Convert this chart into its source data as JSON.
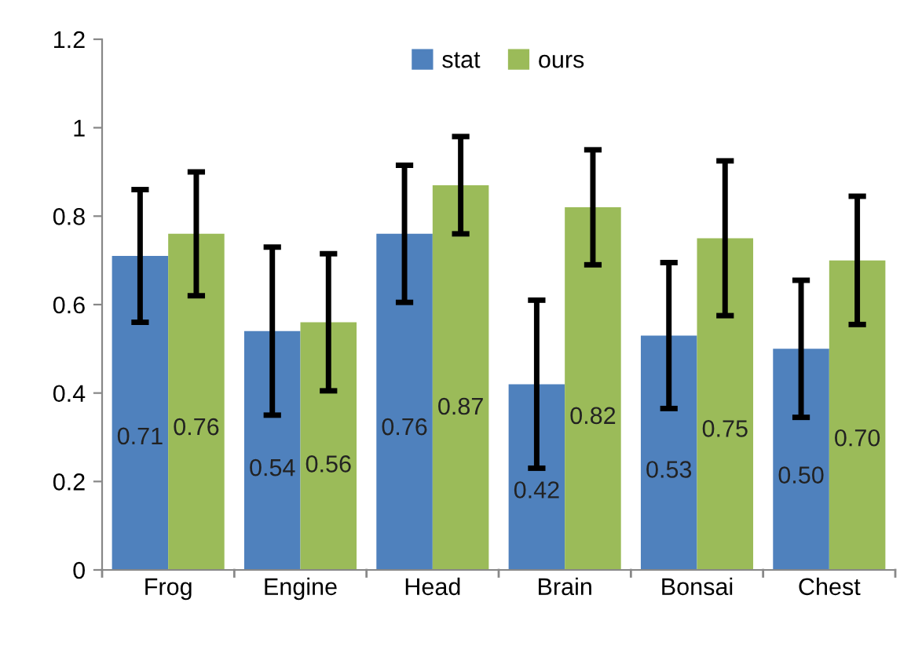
{
  "chart_data": {
    "type": "bar",
    "categories": [
      "Frog",
      "Engine",
      "Head",
      "Brain",
      "Bonsai",
      "Chest"
    ],
    "series": [
      {
        "name": "stat",
        "color": "#4f81bd",
        "values": [
          0.71,
          0.54,
          0.76,
          0.42,
          0.53,
          0.5
        ],
        "errors": [
          0.15,
          0.19,
          0.155,
          0.19,
          0.165,
          0.155
        ],
        "value_labels": [
          "0.71",
          "0.54",
          "0.76",
          "0.42",
          "0.53",
          "0.50"
        ]
      },
      {
        "name": "ours",
        "color": "#9bbb59",
        "values": [
          0.76,
          0.56,
          0.87,
          0.82,
          0.75,
          0.7
        ],
        "errors": [
          0.14,
          0.155,
          0.11,
          0.13,
          0.175,
          0.145
        ],
        "value_labels": [
          "0.76",
          "0.56",
          "0.87",
          "0.82",
          "0.75",
          "0.70"
        ]
      }
    ],
    "ylim": [
      0,
      1.2
    ],
    "yticks": [
      0,
      0.2,
      0.4,
      0.6,
      0.8,
      1,
      1.2
    ],
    "grid": false,
    "legend": "top"
  }
}
